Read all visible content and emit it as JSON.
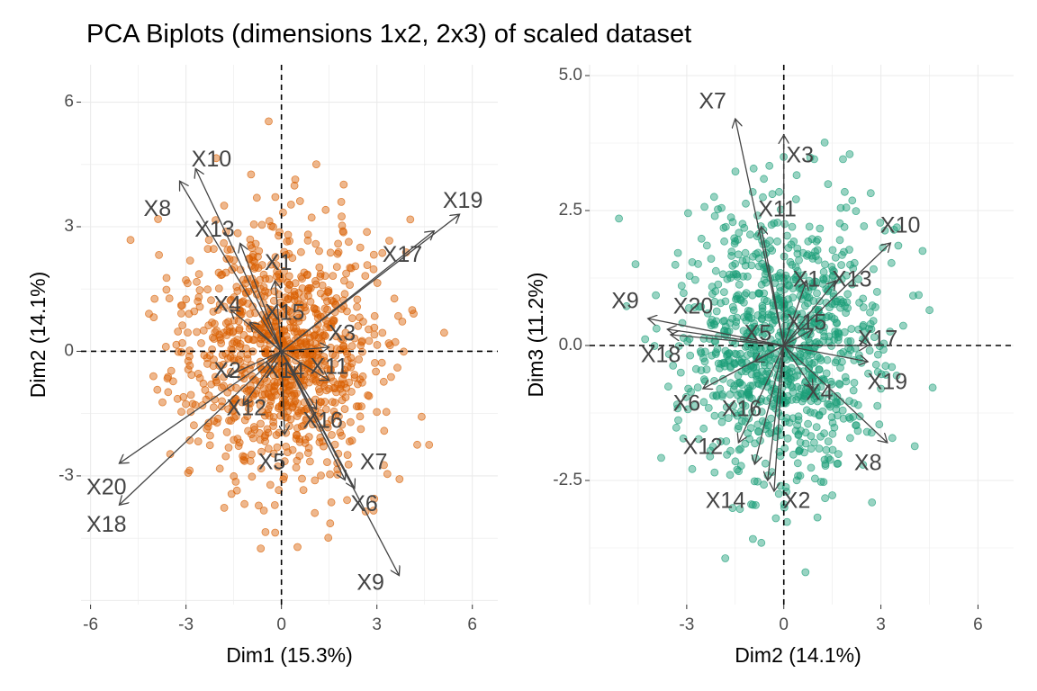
{
  "title": "PCA Biplots (dimensions 1x2, 2x3) of scaled dataset",
  "chart_data": [
    {
      "type": "scatter",
      "subtype": "pca-biplot",
      "xlabel": "Dim1 (15.3%)",
      "ylabel": "Dim2 (14.1%)",
      "xlim": [
        -6.3,
        6.8
      ],
      "ylim": [
        -6.1,
        6.9
      ],
      "x_ticks": [
        -6,
        -3,
        0,
        3,
        6
      ],
      "x_tick_labels": [
        "-6",
        "-3",
        "0",
        "3",
        "6"
      ],
      "y_ticks": [
        -3,
        0,
        3,
        6
      ],
      "y_tick_labels": [
        "-3",
        "0",
        "3",
        "6"
      ],
      "grid": true,
      "reference_lines": {
        "x": 0,
        "y": 0,
        "style": "dashed"
      },
      "point_color": "#d95f02",
      "point_count": 1000,
      "arrows": [
        {
          "name": "X1",
          "x": -0.2,
          "y": 1.7,
          "label_x": -0.1,
          "label_y": 2.1
        },
        {
          "name": "X2",
          "x": -1.7,
          "y": -0.6,
          "label_x": -1.7,
          "label_y": -0.5
        },
        {
          "name": "X3",
          "x": 1.5,
          "y": 0.1,
          "label_x": 1.9,
          "label_y": 0.4
        },
        {
          "name": "X4",
          "x": -1.6,
          "y": 1.0,
          "label_x": -1.7,
          "label_y": 1.1
        },
        {
          "name": "X5",
          "x": 0.1,
          "y": -2.0,
          "label_x": -0.3,
          "label_y": -2.7
        },
        {
          "name": "X6",
          "x": 2.0,
          "y": -3.1,
          "label_x": 2.6,
          "label_y": -3.7
        },
        {
          "name": "X7",
          "x": 2.3,
          "y": -3.3,
          "label_x": 2.9,
          "label_y": -2.7
        },
        {
          "name": "X8",
          "x": -3.2,
          "y": 4.1,
          "label_x": -3.9,
          "label_y": 3.4
        },
        {
          "name": "X9",
          "x": 3.7,
          "y": -5.4,
          "label_x": 2.8,
          "label_y": -5.6
        },
        {
          "name": "X10",
          "x": -2.7,
          "y": 4.4,
          "label_x": -2.2,
          "label_y": 4.6
        },
        {
          "name": "X11",
          "x": 1.5,
          "y": -0.7,
          "label_x": 1.5,
          "label_y": -0.4
        },
        {
          "name": "X12",
          "x": -1.2,
          "y": -1.3,
          "label_x": -1.1,
          "label_y": -1.4
        },
        {
          "name": "X13",
          "x": -1.3,
          "y": 2.6,
          "label_x": -2.1,
          "label_y": 2.9
        },
        {
          "name": "X14",
          "x": 0.4,
          "y": -0.6,
          "label_x": 0.1,
          "label_y": -0.5
        },
        {
          "name": "X15",
          "x": -1.0,
          "y": 0.7,
          "label_x": 0.1,
          "label_y": 0.9
        },
        {
          "name": "X16",
          "x": 1.1,
          "y": -1.4,
          "label_x": 1.3,
          "label_y": -1.7
        },
        {
          "name": "X17",
          "x": 4.8,
          "y": 2.9,
          "label_x": 3.8,
          "label_y": 2.3
        },
        {
          "name": "X18",
          "x": -5.1,
          "y": -3.7,
          "label_x": -5.5,
          "label_y": -4.2
        },
        {
          "name": "X19",
          "x": 5.6,
          "y": 3.3,
          "label_x": 5.7,
          "label_y": 3.6
        },
        {
          "name": "X20",
          "x": -5.1,
          "y": -2.7,
          "label_x": -5.5,
          "label_y": -3.3
        }
      ]
    },
    {
      "type": "scatter",
      "subtype": "pca-biplot",
      "xlabel": "Dim2 (14.1%)",
      "ylabel": "Dim3 (11.2%)",
      "xlim": [
        -6.0,
        7.1
      ],
      "ylim": [
        -4.8,
        5.2
      ],
      "x_ticks": [
        -3,
        0,
        3,
        6
      ],
      "x_tick_labels": [
        "-3",
        "0",
        "3",
        "6"
      ],
      "y_ticks": [
        -2.5,
        0,
        2.5,
        5
      ],
      "y_tick_labels": [
        "-2.5",
        "0.0",
        "2.5",
        "5.0"
      ],
      "grid": true,
      "reference_lines": {
        "x": 0,
        "y": 0,
        "style": "dashed"
      },
      "point_color": "#1b9e77",
      "point_count": 1000,
      "arrows": [
        {
          "name": "X1",
          "x": 0.7,
          "y": 1.2,
          "label_x": 0.7,
          "label_y": 1.2
        },
        {
          "name": "X2",
          "x": -0.3,
          "y": -2.7,
          "label_x": 0.4,
          "label_y": -2.9
        },
        {
          "name": "X3",
          "x": 0.0,
          "y": 3.9,
          "label_x": 0.5,
          "label_y": 3.5
        },
        {
          "name": "X4",
          "x": 0.9,
          "y": -0.8,
          "label_x": 1.1,
          "label_y": -0.9
        },
        {
          "name": "X5",
          "x": -0.9,
          "y": -0.3,
          "label_x": -0.8,
          "label_y": 0.2
        },
        {
          "name": "X6",
          "x": -2.5,
          "y": -0.8,
          "label_x": -3.0,
          "label_y": -1.1
        },
        {
          "name": "X7",
          "x": -1.5,
          "y": 4.2,
          "label_x": -2.2,
          "label_y": 4.5
        },
        {
          "name": "X8",
          "x": 3.2,
          "y": -1.8,
          "label_x": 2.6,
          "label_y": -2.2
        },
        {
          "name": "X9",
          "x": -4.2,
          "y": 0.5,
          "label_x": -4.9,
          "label_y": 0.8
        },
        {
          "name": "X10",
          "x": 3.3,
          "y": 1.9,
          "label_x": 3.6,
          "label_y": 2.2
        },
        {
          "name": "X11",
          "x": -0.7,
          "y": 2.2,
          "label_x": -0.2,
          "label_y": 2.5
        },
        {
          "name": "X12",
          "x": -0.9,
          "y": -2.2,
          "label_x": -2.5,
          "label_y": -1.9
        },
        {
          "name": "X13",
          "x": 1.6,
          "y": 1.2,
          "label_x": 2.1,
          "label_y": 1.2
        },
        {
          "name": "X14",
          "x": -0.5,
          "y": -2.5,
          "label_x": -1.8,
          "label_y": -2.9
        },
        {
          "name": "X15",
          "x": 0.9,
          "y": 0.3,
          "label_x": 0.7,
          "label_y": 0.4
        },
        {
          "name": "X16",
          "x": -1.4,
          "y": -1.8,
          "label_x": -1.3,
          "label_y": -1.2
        },
        {
          "name": "X17",
          "x": 2.6,
          "y": 0.0,
          "label_x": 2.9,
          "label_y": 0.1
        },
        {
          "name": "X18",
          "x": -3.6,
          "y": 0.3,
          "label_x": -3.8,
          "label_y": -0.2
        },
        {
          "name": "X19",
          "x": 2.6,
          "y": -0.3,
          "label_x": 3.2,
          "label_y": -0.7
        },
        {
          "name": "X20",
          "x": -3.5,
          "y": 0.2,
          "label_x": -2.8,
          "label_y": 0.7
        }
      ]
    }
  ]
}
